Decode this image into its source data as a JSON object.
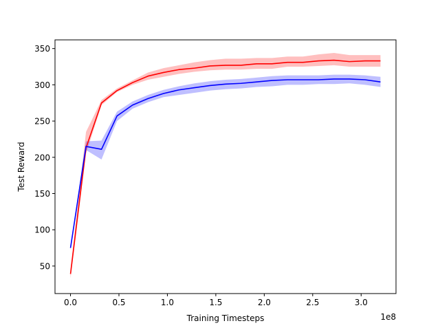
{
  "chart_data": {
    "type": "line",
    "title": "",
    "xlabel": "Training Timesteps",
    "ylabel": "Test Reward",
    "x_offset_label": "1e8",
    "xlim": [
      -0.16,
      3.36
    ],
    "ylim": [
      12,
      362
    ],
    "xticks": [
      0.0,
      0.5,
      1.0,
      1.5,
      2.0,
      2.5,
      3.0
    ],
    "xtick_labels": [
      "0.0",
      "0.5",
      "1.0",
      "1.5",
      "2.0",
      "2.5",
      "3.0"
    ],
    "yticks": [
      50,
      100,
      150,
      200,
      250,
      300,
      350
    ],
    "ytick_labels": [
      "50",
      "100",
      "150",
      "200",
      "250",
      "300",
      "350"
    ],
    "grid": false,
    "legend": false,
    "x": [
      0.0,
      0.16,
      0.32,
      0.48,
      0.64,
      0.8,
      0.96,
      1.12,
      1.28,
      1.44,
      1.6,
      1.76,
      1.92,
      2.08,
      2.24,
      2.4,
      2.56,
      2.72,
      2.88,
      3.04,
      3.2
    ],
    "series": [
      {
        "color": "#ff0000",
        "band_color": "#ff0000",
        "values": [
          39,
          213,
          275,
          292,
          303,
          312,
          317,
          321,
          323,
          326,
          327,
          327,
          329,
          329,
          331,
          331,
          333,
          334,
          332,
          333,
          333
        ],
        "lower": [
          33,
          205,
          272,
          290,
          300,
          307,
          311,
          315,
          318,
          320,
          321,
          321,
          322,
          322,
          325,
          325,
          326,
          327,
          325,
          325,
          325
        ],
        "upper": [
          46,
          235,
          279,
          295,
          306,
          317,
          323,
          327,
          331,
          334,
          336,
          336,
          337,
          337,
          339,
          339,
          342,
          344,
          341,
          341,
          341
        ]
      },
      {
        "color": "#0000ff",
        "band_color": "#0000ff",
        "values": [
          75,
          215,
          211,
          257,
          272,
          281,
          288,
          293,
          296,
          299,
          301,
          302,
          304,
          306,
          307,
          307,
          307,
          308,
          308,
          307,
          304
        ],
        "lower": [
          72,
          210,
          197,
          250,
          267,
          276,
          283,
          286,
          289,
          292,
          294,
          295,
          297,
          298,
          300,
          300,
          301,
          301,
          302,
          300,
          297
        ],
        "upper": [
          78,
          222,
          223,
          263,
          277,
          286,
          293,
          298,
          302,
          305,
          307,
          308,
          310,
          312,
          313,
          313,
          313,
          314,
          314,
          313,
          311
        ]
      }
    ]
  }
}
